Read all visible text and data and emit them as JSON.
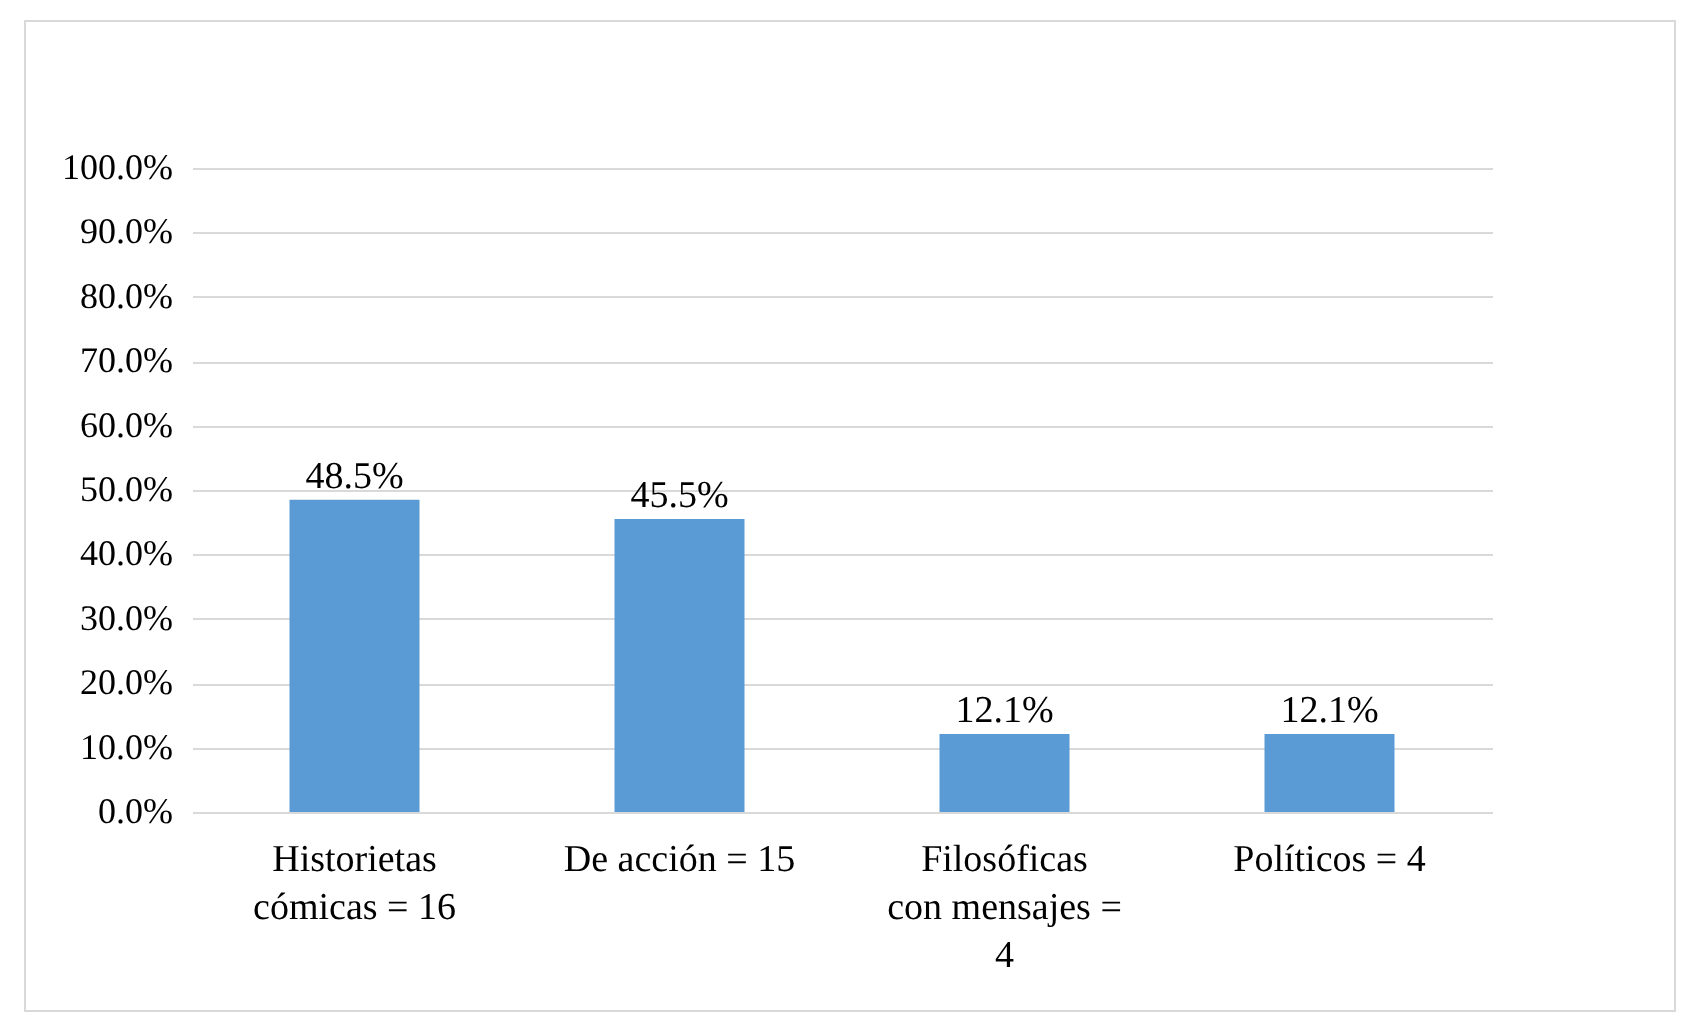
{
  "chart_data": {
    "type": "bar",
    "categories": [
      "Historietas cómicas = 16",
      "De acción = 15",
      "Filosóficas con mensajes = 4",
      "Políticos = 4"
    ],
    "values": [
      48.5,
      45.5,
      12.1,
      12.1
    ],
    "color": "#5b9bd5",
    "value_labels": [
      "48.5%",
      "45.5%",
      "12.1%",
      "12.1%"
    ],
    "ylim": [
      0,
      100
    ],
    "yticks": [
      {
        "value": 0,
        "label": "0.0%"
      },
      {
        "value": 10,
        "label": "10.0%"
      },
      {
        "value": 20,
        "label": "20.0%"
      },
      {
        "value": 30,
        "label": "30.0%"
      },
      {
        "value": 40,
        "label": "40.0%"
      },
      {
        "value": 50,
        "label": "50.0%"
      },
      {
        "value": 60,
        "label": "60.0%"
      },
      {
        "value": 70,
        "label": "70.0%"
      },
      {
        "value": 80,
        "label": "80.0%"
      },
      {
        "value": 90,
        "label": "90.0%"
      },
      {
        "value": 100,
        "label": "100.0%"
      }
    ],
    "grid": "y"
  }
}
